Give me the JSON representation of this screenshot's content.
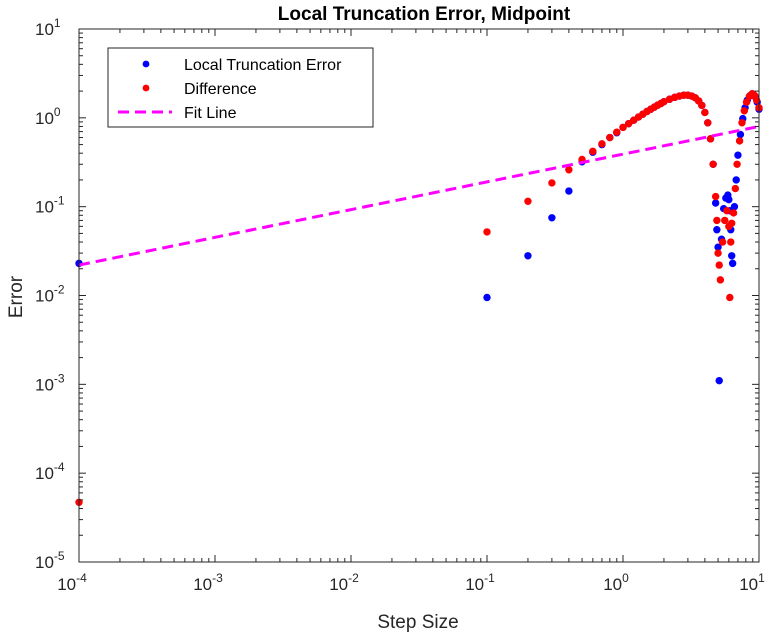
{
  "chart_data": {
    "type": "scatter",
    "title": "Local Truncation Error, Midpoint",
    "xlabel": "Step Size",
    "ylabel": "Error",
    "xscale": "log",
    "yscale": "log",
    "xlim": [
      0.0001,
      10
    ],
    "ylim": [
      1e-05,
      10
    ],
    "x_ticks": [
      {
        "base": "10",
        "exp": "-4",
        "value": 0.0001
      },
      {
        "base": "10",
        "exp": "-3",
        "value": 0.001
      },
      {
        "base": "10",
        "exp": "-2",
        "value": 0.01
      },
      {
        "base": "10",
        "exp": "-1",
        "value": 0.1
      },
      {
        "base": "10",
        "exp": "0",
        "value": 1
      },
      {
        "base": "10",
        "exp": "1",
        "value": 10
      }
    ],
    "y_ticks": [
      {
        "base": "10",
        "exp": "-5",
        "value": 1e-05
      },
      {
        "base": "10",
        "exp": "-4",
        "value": 0.0001
      },
      {
        "base": "10",
        "exp": "-3",
        "value": 0.001
      },
      {
        "base": "10",
        "exp": "-2",
        "value": 0.01
      },
      {
        "base": "10",
        "exp": "-1",
        "value": 0.1
      },
      {
        "base": "10",
        "exp": "0",
        "value": 1
      },
      {
        "base": "10",
        "exp": "1",
        "value": 10
      }
    ],
    "grid": false,
    "legend_position": "top-left",
    "series": [
      {
        "name": "Local Truncation Error",
        "style": "markers",
        "color": "#0000ff",
        "points": [
          [
            0.0001,
            0.023
          ],
          [
            0.1,
            0.0095
          ],
          [
            0.2,
            0.028
          ],
          [
            0.3,
            0.075
          ],
          [
            0.4,
            0.15
          ],
          [
            0.5,
            0.32
          ],
          [
            0.6,
            0.41
          ],
          [
            0.7,
            0.5
          ],
          [
            0.8,
            0.6
          ],
          [
            0.9,
            0.68
          ],
          [
            1.0,
            0.78
          ],
          [
            1.1,
            0.86
          ],
          [
            1.2,
            0.94
          ],
          [
            1.3,
            1.02
          ],
          [
            1.4,
            1.1
          ],
          [
            1.5,
            1.18
          ],
          [
            1.6,
            1.25
          ],
          [
            1.7,
            1.32
          ],
          [
            1.8,
            1.39
          ],
          [
            1.9,
            1.45
          ],
          [
            2.0,
            1.52
          ],
          [
            2.2,
            1.62
          ],
          [
            2.4,
            1.7
          ],
          [
            2.6,
            1.76
          ],
          [
            2.8,
            1.8
          ],
          [
            3.0,
            1.8
          ],
          [
            3.2,
            1.76
          ],
          [
            3.4,
            1.68
          ],
          [
            3.6,
            1.55
          ],
          [
            3.8,
            1.38
          ],
          [
            4.0,
            1.15
          ],
          [
            4.2,
            0.88
          ],
          [
            4.4,
            0.58
          ],
          [
            4.6,
            0.3
          ],
          [
            4.8,
            0.11
          ],
          [
            4.9,
            0.055
          ],
          [
            5.0,
            0.035
          ],
          [
            5.1,
            0.0011
          ],
          [
            5.3,
            0.043
          ],
          [
            5.5,
            0.095
          ],
          [
            5.7,
            0.125
          ],
          [
            5.9,
            0.135
          ],
          [
            6.0,
            0.12
          ],
          [
            6.1,
            0.09
          ],
          [
            6.2,
            0.055
          ],
          [
            6.3,
            0.028
          ],
          [
            6.4,
            0.023
          ],
          [
            6.6,
            0.1
          ],
          [
            6.8,
            0.2
          ],
          [
            7.0,
            0.38
          ],
          [
            7.3,
            0.65
          ],
          [
            7.6,
            0.98
          ],
          [
            7.9,
            1.3
          ],
          [
            8.2,
            1.58
          ],
          [
            8.6,
            1.78
          ],
          [
            9.0,
            1.86
          ],
          [
            9.4,
            1.72
          ],
          [
            9.7,
            1.5
          ],
          [
            10.0,
            1.25
          ]
        ]
      },
      {
        "name": "Difference",
        "style": "markers",
        "color": "#ff0000",
        "points": [
          [
            0.0001,
            4.7e-05
          ],
          [
            0.1,
            0.052
          ],
          [
            0.2,
            0.115
          ],
          [
            0.3,
            0.185
          ],
          [
            0.4,
            0.26
          ],
          [
            0.5,
            0.34
          ],
          [
            0.6,
            0.42
          ],
          [
            0.7,
            0.51
          ],
          [
            0.8,
            0.6
          ],
          [
            0.9,
            0.69
          ],
          [
            1.0,
            0.78
          ],
          [
            1.1,
            0.86
          ],
          [
            1.2,
            0.94
          ],
          [
            1.3,
            1.02
          ],
          [
            1.4,
            1.1
          ],
          [
            1.5,
            1.18
          ],
          [
            1.6,
            1.25
          ],
          [
            1.7,
            1.32
          ],
          [
            1.8,
            1.39
          ],
          [
            1.9,
            1.45
          ],
          [
            2.0,
            1.52
          ],
          [
            2.2,
            1.62
          ],
          [
            2.4,
            1.7
          ],
          [
            2.6,
            1.76
          ],
          [
            2.8,
            1.8
          ],
          [
            3.0,
            1.8
          ],
          [
            3.2,
            1.76
          ],
          [
            3.4,
            1.68
          ],
          [
            3.6,
            1.55
          ],
          [
            3.8,
            1.38
          ],
          [
            4.0,
            1.15
          ],
          [
            4.2,
            0.88
          ],
          [
            4.4,
            0.58
          ],
          [
            4.6,
            0.3
          ],
          [
            4.8,
            0.13
          ],
          [
            4.9,
            0.07
          ],
          [
            5.0,
            0.03
          ],
          [
            5.1,
            0.022
          ],
          [
            5.2,
            0.015
          ],
          [
            5.4,
            0.04
          ],
          [
            5.6,
            0.07
          ],
          [
            5.8,
            0.09
          ],
          [
            6.0,
            0.06
          ],
          [
            6.1,
            0.0095
          ],
          [
            6.2,
            0.04
          ],
          [
            6.3,
            0.065
          ],
          [
            6.5,
            0.085
          ],
          [
            6.7,
            0.16
          ],
          [
            6.9,
            0.3
          ],
          [
            7.2,
            0.55
          ],
          [
            7.5,
            0.88
          ],
          [
            7.8,
            1.2
          ],
          [
            8.1,
            1.5
          ],
          [
            8.5,
            1.75
          ],
          [
            8.9,
            1.87
          ],
          [
            9.3,
            1.78
          ],
          [
            9.6,
            1.58
          ],
          [
            10.0,
            1.3
          ]
        ]
      },
      {
        "name": "Fit Line",
        "style": "dashed-line",
        "color": "#ff00ff",
        "points": [
          [
            0.0001,
            0.022
          ],
          [
            10,
            0.8
          ]
        ]
      }
    ]
  }
}
